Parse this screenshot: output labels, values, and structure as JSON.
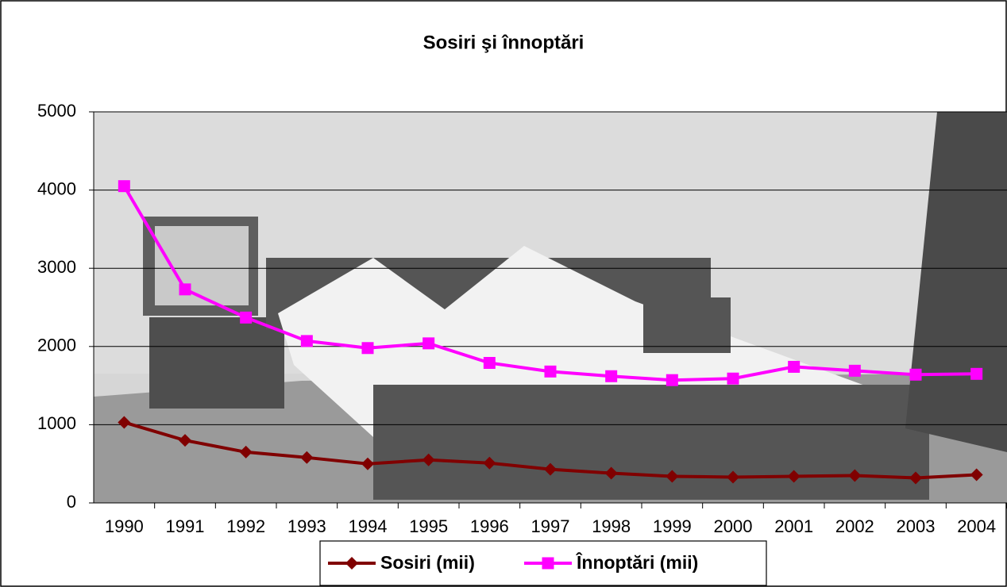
{
  "chart_data": {
    "type": "line",
    "title": "Sosiri şi înnoptări",
    "categories": [
      "1990",
      "1991",
      "1992",
      "1993",
      "1994",
      "1995",
      "1996",
      "1997",
      "1998",
      "1999",
      "2000",
      "2001",
      "2002",
      "2003",
      "2004"
    ],
    "series": [
      {
        "name": "Sosiri (mii)",
        "color": "#800000",
        "marker": "diamond",
        "values": [
          1030,
          800,
          650,
          580,
          500,
          550,
          510,
          430,
          380,
          340,
          330,
          340,
          350,
          320,
          360
        ]
      },
      {
        "name": "Înnoptări (mii)",
        "color": "#ff00ff",
        "marker": "square",
        "values": [
          4050,
          2730,
          2370,
          2070,
          1980,
          2040,
          1790,
          1680,
          1620,
          1570,
          1590,
          1740,
          1690,
          1640,
          1650
        ]
      }
    ],
    "ylim": [
      0,
      5000
    ],
    "yticks": [
      0,
      1000,
      2000,
      3000,
      4000,
      5000
    ],
    "grid": true,
    "legend": "bottom"
  }
}
